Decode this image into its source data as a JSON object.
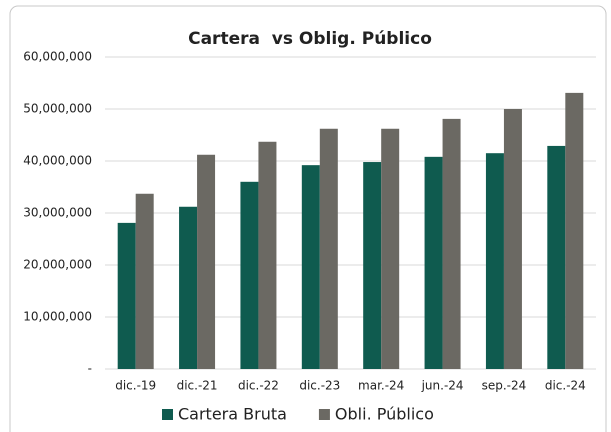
{
  "chart_data": {
    "type": "bar",
    "title": "Cartera  vs Oblig. Público",
    "categories": [
      "dic.-19",
      "dic.-21",
      "dic.-22",
      "dic.-23",
      "mar.-24",
      "jun.-24",
      "sep.-24",
      "dic.-24"
    ],
    "series": [
      {
        "name": "Cartera Bruta",
        "color": "#0f5b4f",
        "values": [
          28100000,
          31200000,
          36000000,
          39200000,
          39800000,
          40800000,
          41500000,
          42900000
        ]
      },
      {
        "name": "Obli. Público",
        "color": "#6b6963",
        "values": [
          33700000,
          41200000,
          43700000,
          46200000,
          46200000,
          48100000,
          50000000,
          53100000
        ]
      }
    ],
    "ylim": [
      0,
      60000000
    ],
    "yticks": [
      {
        "value": 0,
        "label": "-"
      },
      {
        "value": 10000000,
        "label": "10,000,000"
      },
      {
        "value": 20000000,
        "label": "20,000,000"
      },
      {
        "value": 30000000,
        "label": "30,000,000"
      },
      {
        "value": 40000000,
        "label": "40,000,000"
      },
      {
        "value": 50000000,
        "label": "50,000,000"
      },
      {
        "value": 60000000,
        "label": "60,000,000"
      }
    ],
    "grid": true,
    "legend": "bottom"
  }
}
